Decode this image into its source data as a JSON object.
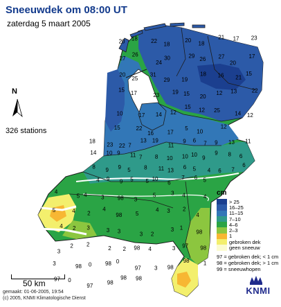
{
  "title": "Sneeuwdek om 08:00 UT",
  "subtitle": "zaterdag 5 maart 2005",
  "stations_label": "326 stations",
  "north_label": "N",
  "scale_label": "50 km",
  "footer": {
    "made": "gemaakt: 01-06-2005, 19:54",
    "copyright": "(c) 2005, KNMI Klimatologische Dienst"
  },
  "logo_text": "KNMI",
  "legend": {
    "unit": "cm",
    "classes": [
      {
        "label": "> 25",
        "color": "#1b3f8f"
      },
      {
        "label": "16–25",
        "color": "#2c5aa8"
      },
      {
        "label": "11–15",
        "color": "#3277b7"
      },
      {
        "label": "7–10",
        "color": "#2f9a8a"
      },
      {
        "label": "4–6",
        "color": "#2aa445"
      },
      {
        "label": "2–3",
        "color": "#8cc63f"
      },
      {
        "label": "1",
        "color": "#f7b733"
      },
      {
        "label": "gebroken dek",
        "color": "#f3ef6d"
      },
      {
        "label": "geen sneeuw",
        "color": "#fbfbcf"
      }
    ],
    "codes": [
      "97 = gebroken dek; < 1 cm",
      "98 = gebroken dek; > 1 cm",
      "99 = sneeuwhopen"
    ]
  },
  "colors": {
    "water": "#ffffff",
    "borders": "#1c1c1c"
  },
  "icons": {
    "north_arrow": "north-arrow-icon",
    "logo": "knmi-crown-logo"
  },
  "map_values": {
    "north": [
      "20",
      "18",
      "22",
      "18",
      "20",
      "18",
      "21",
      "17",
      "23",
      "27",
      "26",
      "24",
      "30",
      "29",
      "26",
      "27",
      "20",
      "17",
      "20",
      "25",
      "31",
      "29",
      "19",
      "18",
      "16",
      "21",
      "15",
      "15",
      "17",
      "23",
      "19",
      "15",
      "20",
      "12",
      "13",
      "22",
      "10",
      "17",
      "14",
      "12",
      "15",
      "12",
      "25",
      "14",
      "12",
      "15",
      "22",
      "16",
      "17",
      "5",
      "10",
      "12"
    ],
    "central": [
      "18",
      "23",
      "22",
      "7",
      "13",
      "19",
      "11",
      "9",
      "6",
      "7",
      "9",
      "13",
      "11",
      "14",
      "10",
      "9",
      "11",
      "7",
      "8",
      "10",
      "10",
      "10",
      "9",
      "9",
      "8",
      "6",
      "8",
      "9",
      "9",
      "5",
      "8",
      "11",
      "13",
      "6",
      "5",
      "4",
      "6",
      "7",
      "6",
      "4",
      "9",
      "9",
      "5",
      "5",
      "10",
      "6",
      "7",
      "6",
      "5"
    ],
    "south": [
      "4",
      "5",
      "4",
      "3",
      "98",
      "3",
      "5",
      "3",
      "4",
      "4",
      "5",
      "4",
      "2",
      "4",
      "98",
      "5",
      "4",
      "3",
      "2",
      "4",
      "4",
      "2",
      "3",
      "3",
      "3",
      "3",
      "2",
      "3",
      "1",
      "98",
      "3",
      "2",
      "2",
      "2",
      "2",
      "98",
      "4",
      "3",
      "97",
      "98",
      "3",
      "98",
      "0",
      "98",
      "0",
      "97",
      "3",
      "98",
      "98",
      "1",
      "97",
      "0",
      "97",
      "98",
      "98",
      "98"
    ]
  }
}
